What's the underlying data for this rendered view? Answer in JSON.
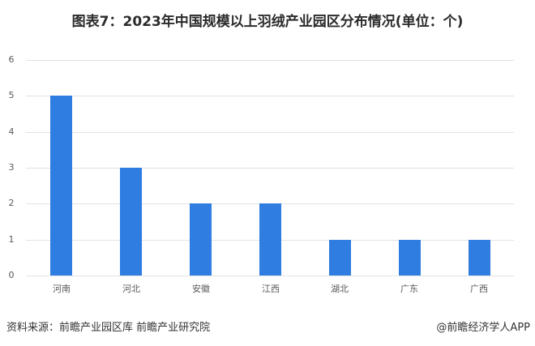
{
  "chart_data": {
    "type": "bar",
    "title": "图表7：2023年中国规模以上羽绒产业园区分布情况(单位：个)",
    "categories": [
      "河南",
      "河北",
      "安徽",
      "江西",
      "湖北",
      "广东",
      "广西"
    ],
    "values": [
      5,
      3,
      2,
      2,
      1,
      1,
      1
    ],
    "xlabel": "",
    "ylabel": "",
    "ylim": [
      0,
      6
    ],
    "yticks": [
      "0",
      "1",
      "2",
      "3",
      "4",
      "5",
      "6"
    ],
    "grid": true,
    "legend": null,
    "bar_color": "#2f7de1"
  },
  "footer": {
    "source": "资料来源：前瞻产业园区库 前瞻产业研究院",
    "brand": "@前瞻经济学人APP"
  }
}
